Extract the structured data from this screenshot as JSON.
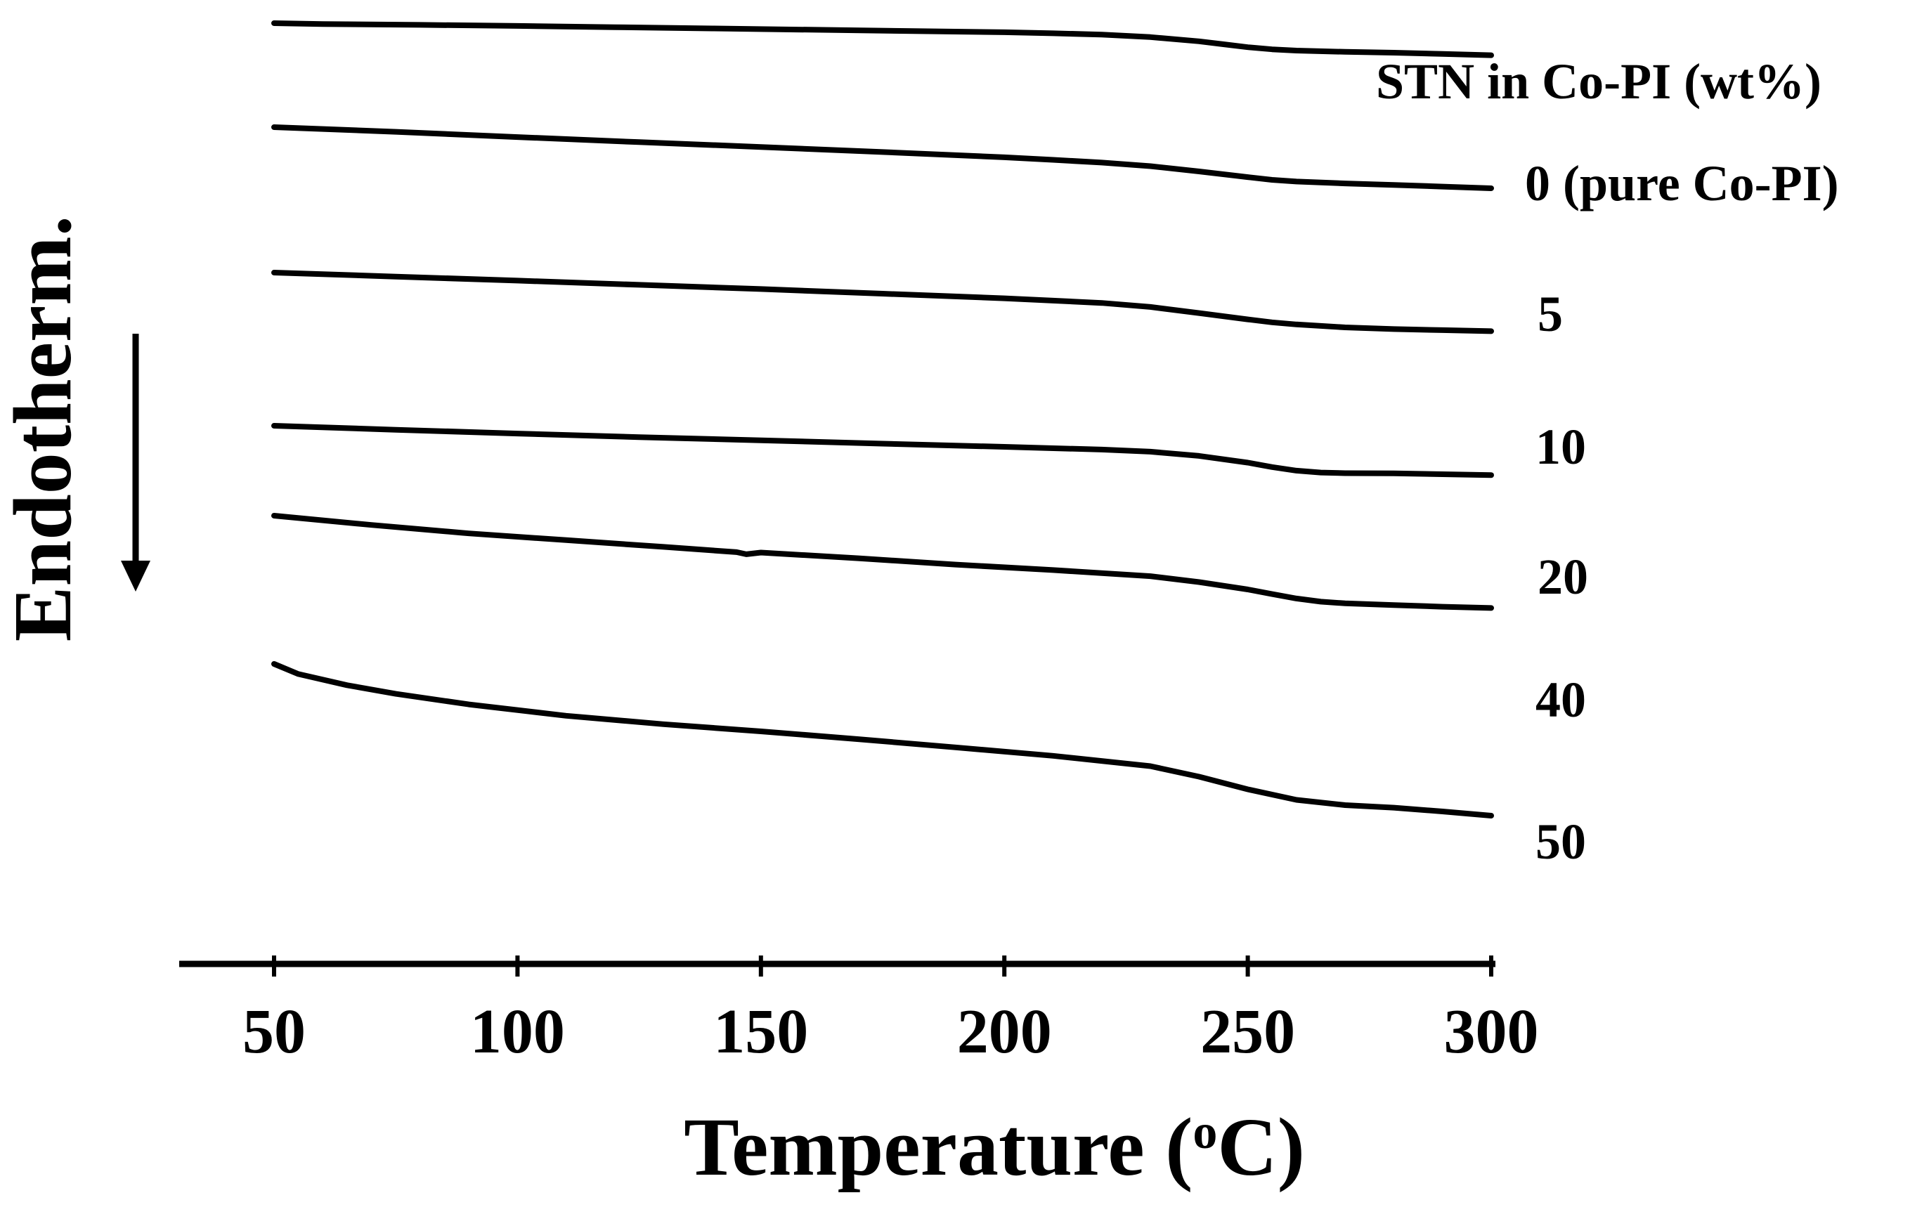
{
  "chart_data": {
    "type": "line",
    "title": "",
    "xlabel": "Temperature (",
    "xlabel_sup": "o",
    "xlabel_end": "C)",
    "ylabel": "Endotherm.",
    "xlim": [
      30,
      300
    ],
    "x_ticks": [
      50,
      100,
      150,
      200,
      250,
      300
    ],
    "x_tick_labels": [
      "50",
      "100",
      "150",
      "200",
      "250",
      "300"
    ],
    "legend_title": "STN in Co-PI (wt%)",
    "y_units": "arbitrary (stacked curves, downward = endothermic)",
    "series": [
      {
        "name": "0 (pure Co-PI)",
        "label": "0 (pure Co-PI)",
        "x": [
          50,
          60,
          80,
          100,
          120,
          140,
          160,
          180,
          200,
          210,
          220,
          230,
          240,
          245,
          250,
          255,
          260,
          270,
          280,
          290,
          300
        ],
        "y": [
          0.0,
          -0.04,
          -0.08,
          -0.13,
          -0.19,
          -0.25,
          -0.31,
          -0.37,
          -0.43,
          -0.48,
          -0.54,
          -0.66,
          -0.86,
          -1.0,
          -1.14,
          -1.24,
          -1.3,
          -1.36,
          -1.4,
          -1.46,
          -1.52
        ]
      },
      {
        "name": "5",
        "label": "5",
        "x": [
          50,
          75,
          100,
          125,
          150,
          175,
          200,
          210,
          220,
          230,
          240,
          250,
          255,
          260,
          270,
          280,
          290,
          300
        ],
        "y": [
          0.0,
          -0.22,
          -0.47,
          -0.71,
          -0.94,
          -1.18,
          -1.43,
          -1.55,
          -1.68,
          -1.85,
          -2.1,
          -2.37,
          -2.5,
          -2.58,
          -2.67,
          -2.74,
          -2.82,
          -2.9
        ]
      },
      {
        "name": "10",
        "label": "10",
        "x": [
          50,
          75,
          100,
          125,
          150,
          175,
          200,
          210,
          220,
          230,
          240,
          250,
          255,
          260,
          270,
          280,
          290,
          300
        ],
        "y": [
          0.0,
          -0.19,
          -0.38,
          -0.58,
          -0.78,
          -1.0,
          -1.22,
          -1.33,
          -1.44,
          -1.63,
          -1.92,
          -2.22,
          -2.36,
          -2.46,
          -2.6,
          -2.68,
          -2.73,
          -2.78
        ]
      },
      {
        "name": "20",
        "label": "20",
        "x": [
          50,
          75,
          100,
          125,
          150,
          175,
          200,
          220,
          230,
          240,
          250,
          255,
          260,
          265,
          270,
          280,
          290,
          300
        ],
        "y": [
          0.0,
          -0.19,
          -0.37,
          -0.54,
          -0.69,
          -0.85,
          -1.0,
          -1.13,
          -1.23,
          -1.43,
          -1.75,
          -1.96,
          -2.13,
          -2.22,
          -2.25,
          -2.26,
          -2.3,
          -2.34
        ]
      },
      {
        "name": "40",
        "label": "40",
        "x": [
          50,
          70,
          90,
          110,
          130,
          145,
          147,
          150,
          170,
          190,
          210,
          230,
          240,
          250,
          255,
          260,
          265,
          270,
          280,
          290,
          300
        ],
        "y": [
          0.0,
          -0.44,
          -0.84,
          -1.16,
          -1.48,
          -1.73,
          -1.83,
          -1.75,
          -2.02,
          -2.32,
          -2.58,
          -2.87,
          -3.15,
          -3.5,
          -3.72,
          -3.93,
          -4.08,
          -4.16,
          -4.24,
          -4.32,
          -4.38
        ]
      },
      {
        "name": "50",
        "label": "50",
        "x": [
          50,
          55,
          65,
          75,
          90,
          110,
          130,
          150,
          170,
          190,
          210,
          230,
          240,
          250,
          260,
          270,
          280,
          290,
          300
        ],
        "y": [
          0.0,
          -0.48,
          -1.01,
          -1.42,
          -1.92,
          -2.46,
          -2.86,
          -3.2,
          -3.57,
          -3.96,
          -4.36,
          -4.85,
          -5.35,
          -5.95,
          -6.45,
          -6.7,
          -6.82,
          -7.0,
          -7.2
        ]
      }
    ]
  }
}
